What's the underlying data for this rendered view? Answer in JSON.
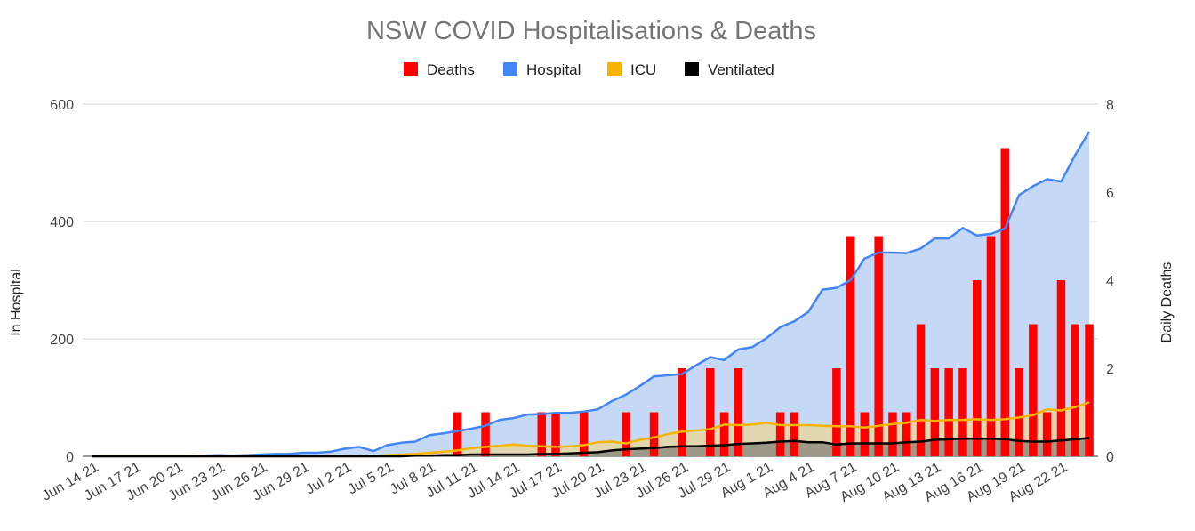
{
  "chart_data": {
    "type": "combo",
    "title": "NSW COVID Hospitalisations & Deaths",
    "y_left_label": "In Hospital",
    "y_right_label": "Daily Deaths",
    "y_left_range": [
      0,
      600
    ],
    "y_right_range": [
      0,
      8
    ],
    "y_left_ticks": [
      "0",
      "200",
      "400",
      "600"
    ],
    "y_right_ticks": [
      "0",
      "2",
      "4",
      "6",
      "8"
    ],
    "x_tick_labels": [
      "Jun 14 21",
      "Jun 17 21",
      "Jun 20 21",
      "Jun 23 21",
      "Jun 26 21",
      "Jun 29 21",
      "Jul 2 21",
      "Jul 5 21",
      "Jul 8 21",
      "Jul 11 21",
      "Jul 14 21",
      "Jul 17 21",
      "Jul 20 21",
      "Jul 23 21",
      "Jul 26 21",
      "Jul 29 21",
      "Aug 1 21",
      "Aug 4 21",
      "Aug 7 21",
      "Aug 10 21",
      "Aug 13 21",
      "Aug 16 21",
      "Aug 19 21",
      "Aug 22 21"
    ],
    "legend_position": "top",
    "grid": true,
    "series": [
      {
        "name": "Deaths",
        "type": "bar",
        "axis": "right",
        "color": "#ff0000",
        "values": [
          0,
          0,
          0,
          0,
          0,
          0,
          0,
          0,
          0,
          0,
          0,
          0,
          0,
          0,
          0,
          0,
          0,
          0,
          0,
          0,
          0,
          0,
          0,
          0,
          0,
          0,
          1,
          0,
          1,
          0,
          0,
          0,
          1,
          1,
          0,
          1,
          0,
          0,
          1,
          0,
          1,
          0,
          2,
          0,
          2,
          1,
          2,
          0,
          0,
          1,
          1,
          0,
          0,
          2,
          5,
          1,
          5,
          1,
          1,
          3,
          2,
          2,
          2,
          4,
          5,
          7,
          2,
          3,
          1,
          4,
          3,
          3
        ]
      },
      {
        "name": "Hospital",
        "type": "area",
        "axis": "left",
        "color": "#4285f4",
        "fill": "#c5d9f7",
        "values": [
          0,
          0,
          0,
          0,
          0,
          0,
          0,
          0,
          1,
          2,
          1,
          2,
          3,
          4,
          4,
          6,
          6,
          8,
          13,
          16,
          9,
          19,
          23,
          25,
          36,
          39,
          43,
          47,
          52,
          62,
          65,
          71,
          72,
          74,
          74,
          76,
          80,
          94,
          105,
          120,
          136,
          138,
          140,
          155,
          169,
          164,
          182,
          186,
          201,
          220,
          230,
          246,
          284,
          287,
          300,
          337,
          347,
          347,
          346,
          354,
          371,
          371,
          389,
          376,
          379,
          388,
          445,
          460,
          472,
          468,
          513,
          553
        ]
      },
      {
        "name": "ICU",
        "type": "area",
        "axis": "left",
        "color": "#f6b400",
        "fill": "#e2d8b0",
        "values": [
          0,
          0,
          0,
          0,
          0,
          0,
          0,
          0,
          0,
          0,
          0,
          0,
          0,
          0,
          0,
          0,
          0,
          0,
          0,
          0,
          0,
          2,
          3,
          4,
          6,
          8,
          10,
          14,
          16,
          18,
          20,
          18,
          17,
          16,
          17,
          19,
          24,
          25,
          22,
          28,
          32,
          38,
          42,
          44,
          46,
          54,
          53,
          54,
          57,
          53,
          53,
          53,
          52,
          51,
          51,
          49,
          52,
          55,
          57,
          62,
          60,
          62,
          62,
          63,
          62,
          63,
          66,
          70,
          80,
          78,
          84,
          92
        ]
      },
      {
        "name": "Ventilated",
        "type": "area",
        "axis": "left",
        "color": "#000000",
        "fill": "#9e9886",
        "values": [
          0,
          0,
          0,
          0,
          0,
          0,
          0,
          0,
          0,
          0,
          0,
          0,
          0,
          0,
          0,
          0,
          0,
          0,
          0,
          0,
          0,
          0,
          0,
          1,
          1,
          2,
          2,
          3,
          3,
          3,
          3,
          3,
          4,
          4,
          5,
          6,
          7,
          10,
          12,
          13,
          14,
          16,
          17,
          17,
          18,
          19,
          21,
          22,
          23,
          25,
          26,
          24,
          24,
          20,
          22,
          22,
          22,
          22,
          24,
          25,
          28,
          29,
          30,
          30,
          30,
          29,
          26,
          25,
          25,
          27,
          29,
          31
        ]
      }
    ]
  }
}
